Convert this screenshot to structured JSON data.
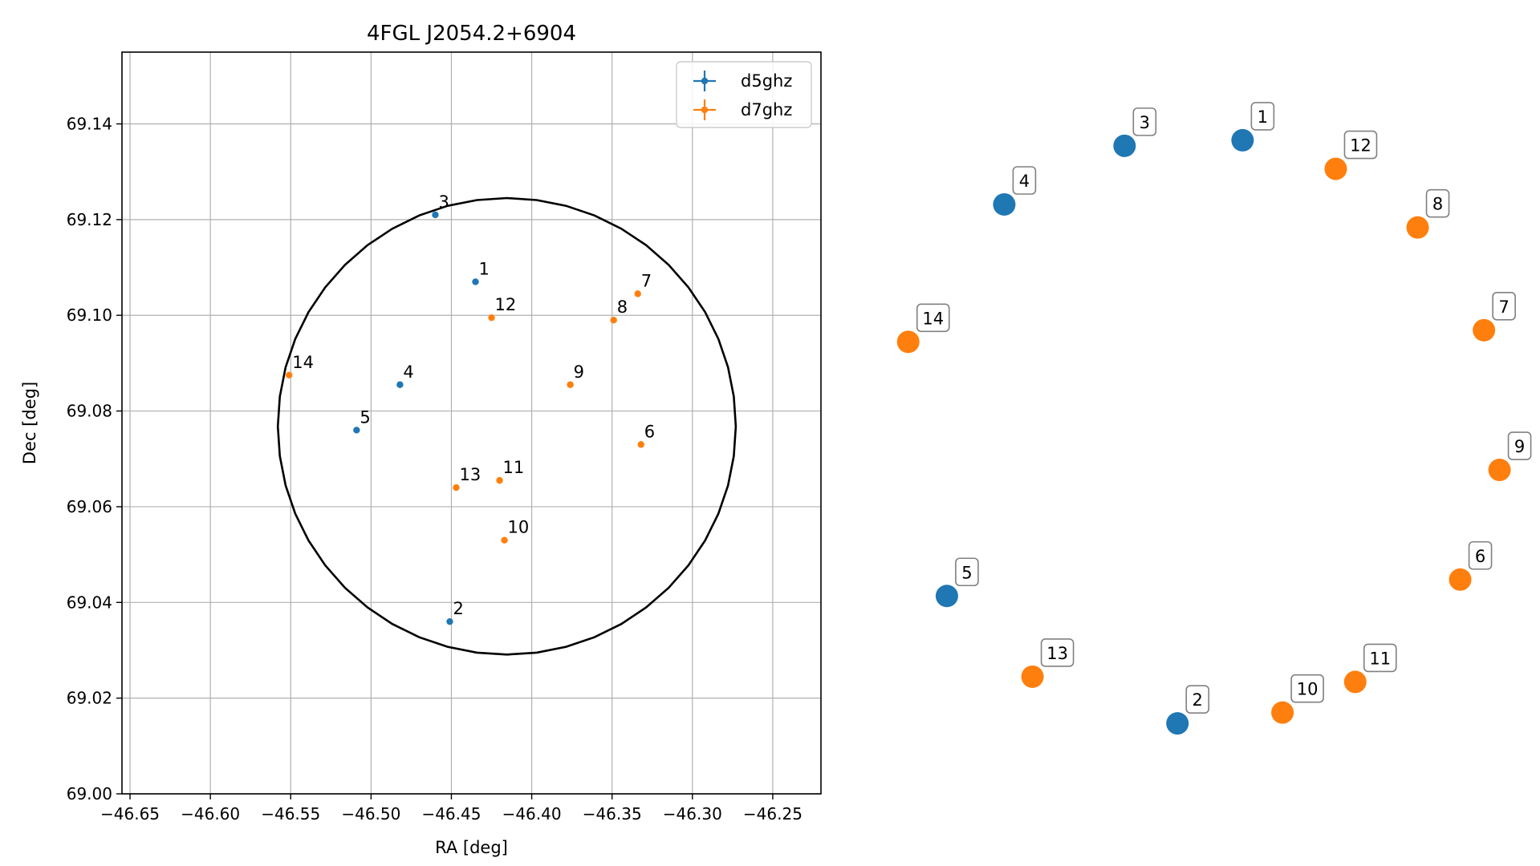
{
  "chart_data": [
    {
      "type": "scatter",
      "title": "4FGL J2054.2+6904",
      "xlabel": "RA [deg]",
      "ylabel": "Dec [deg]",
      "xlim": [
        -46.655,
        -46.22
      ],
      "ylim": [
        69.0,
        69.155
      ],
      "grid": true,
      "legend_position": "top-right",
      "x_ticks": [
        -46.65,
        -46.6,
        -46.55,
        -46.5,
        -46.45,
        -46.4,
        -46.35,
        -46.3,
        -46.25
      ],
      "x_tick_labels": [
        "−46.65",
        "−46.60",
        "−46.55",
        "−46.50",
        "−46.45",
        "−46.40",
        "−46.35",
        "−46.30",
        "−46.25"
      ],
      "y_ticks": [
        69.0,
        69.02,
        69.04,
        69.06,
        69.08,
        69.1,
        69.12,
        69.14
      ],
      "y_tick_labels": [
        "69.00",
        "69.02",
        "69.04",
        "69.06",
        "69.08",
        "69.10",
        "69.12",
        "69.14"
      ],
      "circle": {
        "center_ra": -46.4155,
        "center_dec": 69.0768,
        "radius_ra": 0.1425,
        "radius_dec": 0.0477,
        "color": "#000000"
      },
      "series": [
        {
          "name": "d5ghz",
          "color": "#1f77b4",
          "points": [
            {
              "label": "1",
              "x": -46.435,
              "y": 69.107
            },
            {
              "label": "2",
              "x": -46.451,
              "y": 69.036
            },
            {
              "label": "3",
              "x": -46.46,
              "y": 69.121
            },
            {
              "label": "4",
              "x": -46.482,
              "y": 69.0855
            },
            {
              "label": "5",
              "x": -46.509,
              "y": 69.076
            }
          ]
        },
        {
          "name": "d7ghz",
          "color": "#ff7f0e",
          "points": [
            {
              "label": "6",
              "x": -46.332,
              "y": 69.073
            },
            {
              "label": "7",
              "x": -46.334,
              "y": 69.1045
            },
            {
              "label": "8",
              "x": -46.349,
              "y": 69.099
            },
            {
              "label": "9",
              "x": -46.376,
              "y": 69.0855
            },
            {
              "label": "10",
              "x": -46.417,
              "y": 69.053
            },
            {
              "label": "11",
              "x": -46.42,
              "y": 69.0655
            },
            {
              "label": "12",
              "x": -46.425,
              "y": 69.0995
            },
            {
              "label": "13",
              "x": -46.447,
              "y": 69.064
            },
            {
              "label": "14",
              "x": -46.551,
              "y": 69.0875
            }
          ]
        }
      ]
    },
    {
      "type": "scatter",
      "title": "",
      "axes_visible": false,
      "points": [
        {
          "label": "1",
          "series": "d5ghz"
        },
        {
          "label": "2",
          "series": "d5ghz"
        },
        {
          "label": "3",
          "series": "d5ghz"
        },
        {
          "label": "4",
          "series": "d5ghz"
        },
        {
          "label": "5",
          "series": "d5ghz"
        },
        {
          "label": "6",
          "series": "d7ghz"
        },
        {
          "label": "7",
          "series": "d7ghz"
        },
        {
          "label": "8",
          "series": "d7ghz"
        },
        {
          "label": "9",
          "series": "d7ghz"
        },
        {
          "label": "10",
          "series": "d7ghz"
        },
        {
          "label": "11",
          "series": "d7ghz"
        },
        {
          "label": "12",
          "series": "d7ghz"
        },
        {
          "label": "13",
          "series": "d7ghz"
        },
        {
          "label": "14",
          "series": "d7ghz"
        }
      ]
    }
  ]
}
